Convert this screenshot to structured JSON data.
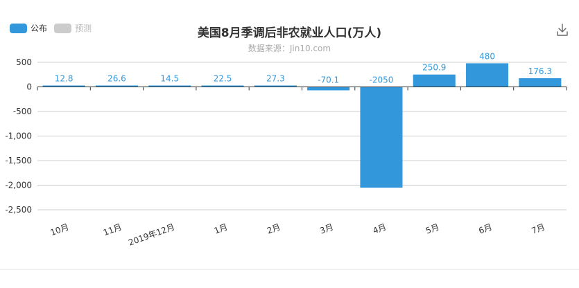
{
  "legend": {
    "items": [
      {
        "label": "公布",
        "color": "#3398db",
        "active": true
      },
      {
        "label": "预测",
        "color": "#cccccc",
        "active": false
      }
    ]
  },
  "title": "美国8月季调后非农就业人口(万人)",
  "subtitle": "数据来源：Jin10.com",
  "icons": {
    "download": "download-icon"
  },
  "chart_data": {
    "type": "bar",
    "title": "美国8月季调后非农就业人口(万人)",
    "subtitle": "数据来源：Jin10.com",
    "categories": [
      "10月",
      "11月",
      "2019年12月",
      "1月",
      "2月",
      "3月",
      "4月",
      "5月",
      "6月",
      "7月"
    ],
    "series": [
      {
        "name": "公布",
        "color": "#3398db",
        "values": [
          12.8,
          26.6,
          14.5,
          22.5,
          27.3,
          -70.1,
          -2050,
          250.9,
          480,
          176.3
        ]
      }
    ],
    "ylim": [
      -2500,
      500
    ],
    "yticks": [
      500,
      0,
      -500,
      -1000,
      -1500,
      -2000,
      -2500
    ],
    "ytick_labels": [
      "500",
      "0",
      "-500",
      "-1,000",
      "-1,500",
      "-2,000",
      "-2,500"
    ],
    "xlabel": "",
    "ylabel": "",
    "grid": true,
    "legend_position": "top-left"
  }
}
